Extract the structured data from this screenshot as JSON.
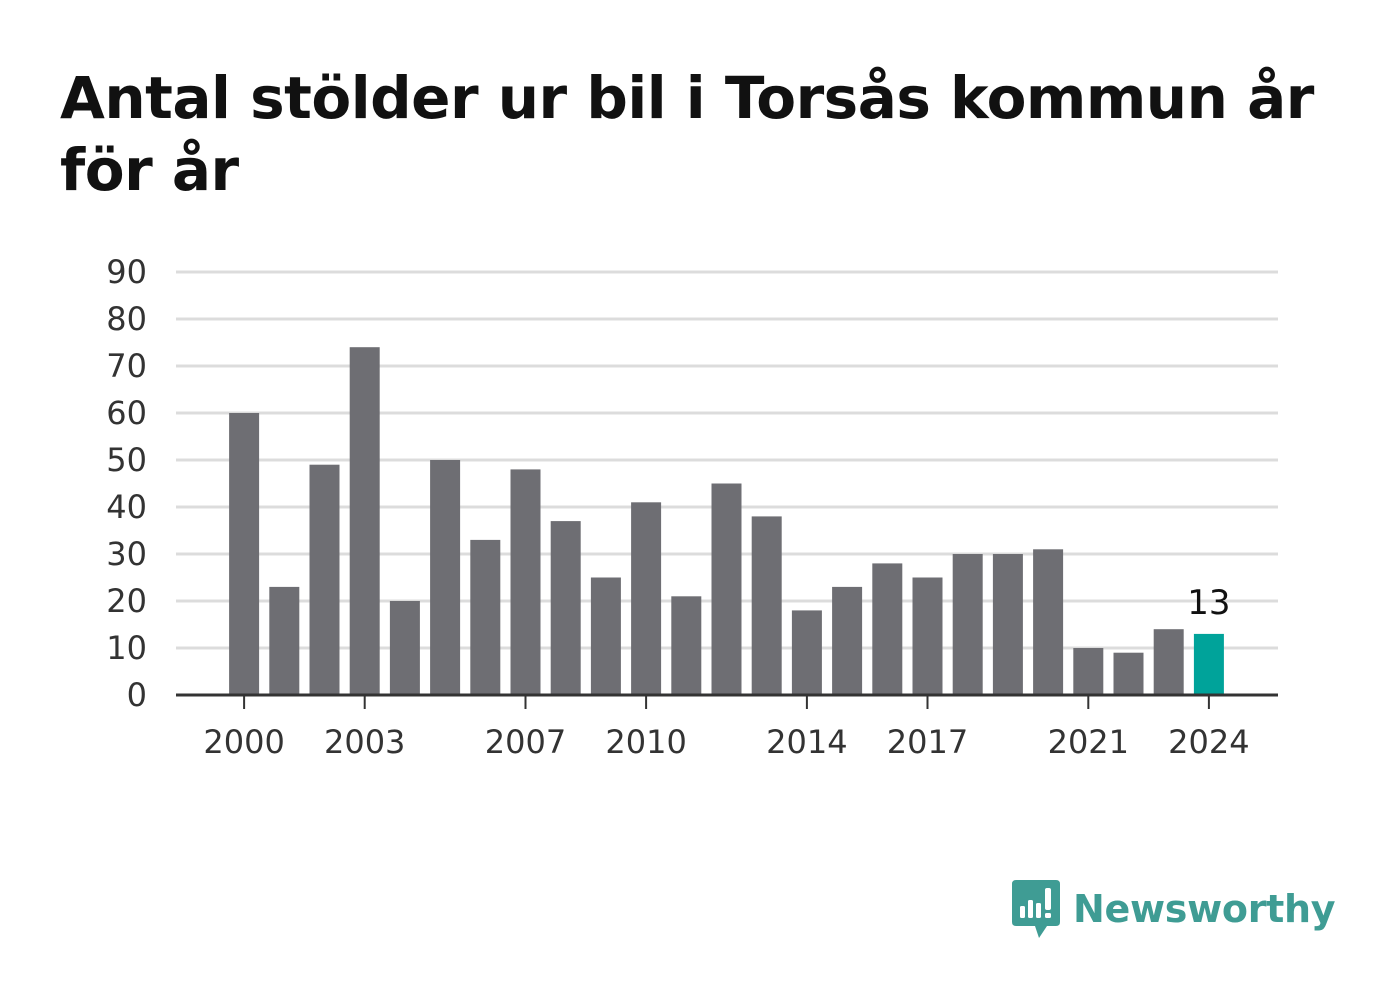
{
  "chart_data": {
    "type": "bar",
    "title": "Antal stölder ur bil i Torsås kommun år för år",
    "xlabel": "",
    "ylabel": "",
    "categories": [
      2000,
      2001,
      2002,
      2003,
      2004,
      2005,
      2006,
      2007,
      2008,
      2009,
      2010,
      2011,
      2012,
      2013,
      2014,
      2015,
      2016,
      2017,
      2018,
      2019,
      2020,
      2021,
      2022,
      2023,
      2024
    ],
    "values": [
      60,
      23,
      49,
      74,
      20,
      50,
      33,
      48,
      37,
      25,
      41,
      21,
      45,
      38,
      18,
      23,
      28,
      25,
      30,
      30,
      31,
      10,
      9,
      14,
      13
    ],
    "ylim": [
      0,
      90
    ],
    "yticks": [
      "0",
      "10",
      "20",
      "30",
      "40",
      "50",
      "60",
      "70",
      "80",
      "90"
    ],
    "xticks": [
      "2000",
      "2003",
      "2007",
      "2010",
      "2014",
      "2017",
      "2021",
      "2024"
    ],
    "grid": true,
    "bar_color": "#6e6e73",
    "highlight_color": "#00a39a",
    "highlight_index": 24,
    "highlight_label": "13"
  },
  "brand": {
    "name": "Newsworthy",
    "icon": "newsworthy-logo-icon",
    "color": "#3f9c94"
  }
}
